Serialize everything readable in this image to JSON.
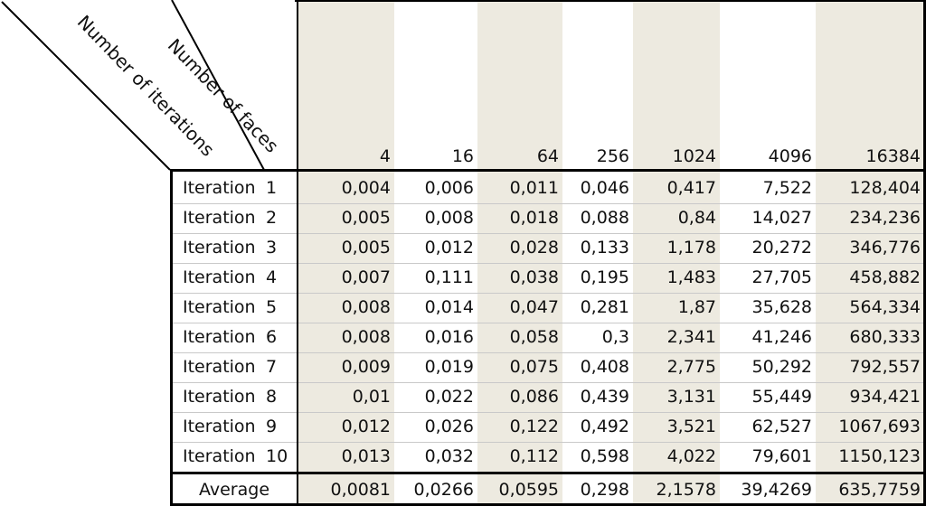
{
  "corner": {
    "columns_label": "Number of faces",
    "rows_label": "Number of iterations"
  },
  "columns": [
    "4",
    "16",
    "64",
    "256",
    "1024",
    "4096",
    "16384"
  ],
  "rows": [
    {
      "word": "Iteration",
      "num": "1",
      "values": [
        "0,004",
        "0,006",
        "0,011",
        "0,046",
        "0,417",
        "7,522",
        "128,404"
      ]
    },
    {
      "word": "Iteration",
      "num": "2",
      "values": [
        "0,005",
        "0,008",
        "0,018",
        "0,088",
        "0,84",
        "14,027",
        "234,236"
      ]
    },
    {
      "word": "Iteration",
      "num": "3",
      "values": [
        "0,005",
        "0,012",
        "0,028",
        "0,133",
        "1,178",
        "20,272",
        "346,776"
      ]
    },
    {
      "word": "Iteration",
      "num": "4",
      "values": [
        "0,007",
        "0,111",
        "0,038",
        "0,195",
        "1,483",
        "27,705",
        "458,882"
      ]
    },
    {
      "word": "Iteration",
      "num": "5",
      "values": [
        "0,008",
        "0,014",
        "0,047",
        "0,281",
        "1,87",
        "35,628",
        "564,334"
      ]
    },
    {
      "word": "Iteration",
      "num": "6",
      "values": [
        "0,008",
        "0,016",
        "0,058",
        "0,3",
        "2,341",
        "41,246",
        "680,333"
      ]
    },
    {
      "word": "Iteration",
      "num": "7",
      "values": [
        "0,009",
        "0,019",
        "0,075",
        "0,408",
        "2,775",
        "50,292",
        "792,557"
      ]
    },
    {
      "word": "Iteration",
      "num": "8",
      "values": [
        "0,01",
        "0,022",
        "0,086",
        "0,439",
        "3,131",
        "55,449",
        "934,421"
      ]
    },
    {
      "word": "Iteration",
      "num": "9",
      "values": [
        "0,012",
        "0,026",
        "0,122",
        "0,492",
        "3,521",
        "62,527",
        "1067,693"
      ]
    },
    {
      "word": "Iteration",
      "num": "10",
      "values": [
        "0,013",
        "0,032",
        "0,112",
        "0,598",
        "4,022",
        "79,601",
        "1150,123"
      ]
    }
  ],
  "average": {
    "label": "Average",
    "values": [
      "0,0081",
      "0,0266",
      "0,0595",
      "0,298",
      "2,1578",
      "39,4269",
      "635,7759"
    ]
  }
}
